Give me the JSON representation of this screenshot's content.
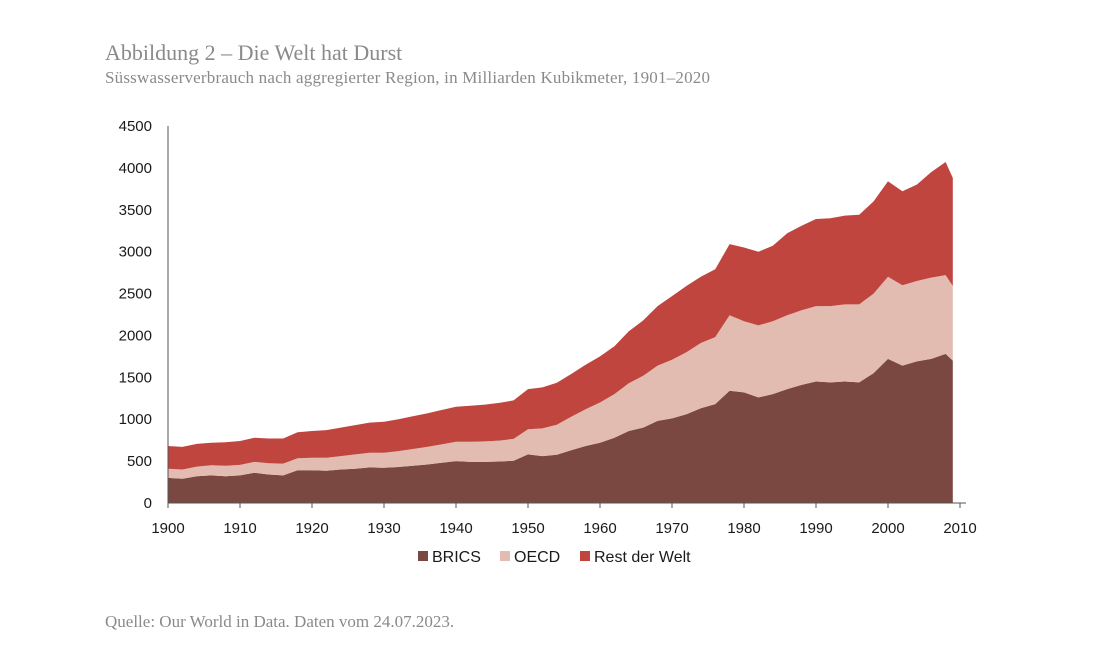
{
  "header": {
    "title": "Abbildung 2 – Die Welt hat Durst",
    "subtitle": "Süsswasserverbrauch nach aggregierter Region, in Milliarden Kubikmeter, 1901–2020"
  },
  "footer": {
    "source": "Quelle: Our World in Data. Daten vom 24.07.2023."
  },
  "chart_data": {
    "type": "area",
    "stacked": true,
    "title": "Abbildung 2 – Die Welt hat Durst",
    "subtitle": "Süsswasserverbrauch nach aggregierter Region, in Milliarden Kubikmeter, 1901–2020",
    "xlabel": "",
    "ylabel": "",
    "xlim": [
      1900,
      2010
    ],
    "ylim": [
      0,
      4500
    ],
    "xticks": [
      1900,
      1910,
      1920,
      1930,
      1940,
      1950,
      1960,
      1970,
      1980,
      1990,
      2000,
      2010
    ],
    "yticks": [
      0,
      500,
      1000,
      1500,
      2000,
      2500,
      3000,
      3500,
      4000,
      4500
    ],
    "legend_position": "bottom",
    "grid": false,
    "x": [
      1900,
      1902,
      1904,
      1906,
      1908,
      1910,
      1912,
      1914,
      1916,
      1918,
      1920,
      1922,
      1924,
      1926,
      1928,
      1930,
      1932,
      1934,
      1936,
      1938,
      1940,
      1942,
      1944,
      1946,
      1948,
      1950,
      1952,
      1954,
      1956,
      1958,
      1960,
      1962,
      1964,
      1966,
      1968,
      1970,
      1972,
      1974,
      1976,
      1978,
      1980,
      1982,
      1984,
      1986,
      1988,
      1990,
      1992,
      1994,
      1996,
      1998,
      2000,
      2002,
      2004,
      2006,
      2008,
      2009
    ],
    "series": [
      {
        "name": "BRICS",
        "color": "#7b4841",
        "values": [
          300,
          290,
          320,
          330,
          320,
          330,
          360,
          340,
          330,
          390,
          390,
          385,
          400,
          410,
          425,
          420,
          430,
          445,
          460,
          480,
          500,
          490,
          490,
          495,
          505,
          580,
          560,
          575,
          630,
          680,
          720,
          780,
          860,
          900,
          980,
          1010,
          1060,
          1130,
          1180,
          1340,
          1320,
          1260,
          1300,
          1360,
          1410,
          1450,
          1440,
          1450,
          1440,
          1550,
          1720,
          1640,
          1690,
          1720,
          1780,
          1700
        ]
      },
      {
        "name": "OECD",
        "color": "#e2bcb0",
        "values": [
          110,
          110,
          115,
          120,
          125,
          125,
          130,
          135,
          140,
          145,
          150,
          155,
          160,
          170,
          175,
          180,
          190,
          200,
          210,
          220,
          230,
          240,
          245,
          250,
          260,
          300,
          330,
          360,
          400,
          440,
          480,
          520,
          570,
          620,
          660,
          700,
          740,
          780,
          800,
          900,
          850,
          860,
          870,
          880,
          890,
          900,
          910,
          920,
          930,
          950,
          980,
          960,
          960,
          970,
          940,
          890
        ]
      },
      {
        "name": "Rest der Welt",
        "color": "#c0453f",
        "values": [
          270,
          270,
          270,
          270,
          280,
          285,
          290,
          295,
          300,
          310,
          320,
          330,
          340,
          350,
          360,
          370,
          380,
          390,
          400,
          410,
          420,
          430,
          440,
          450,
          460,
          480,
          490,
          500,
          510,
          530,
          550,
          570,
          620,
          660,
          710,
          760,
          790,
          790,
          810,
          850,
          880,
          880,
          900,
          980,
          1010,
          1040,
          1050,
          1060,
          1070,
          1100,
          1140,
          1120,
          1150,
          1260,
          1350,
          1290
        ]
      }
    ]
  }
}
